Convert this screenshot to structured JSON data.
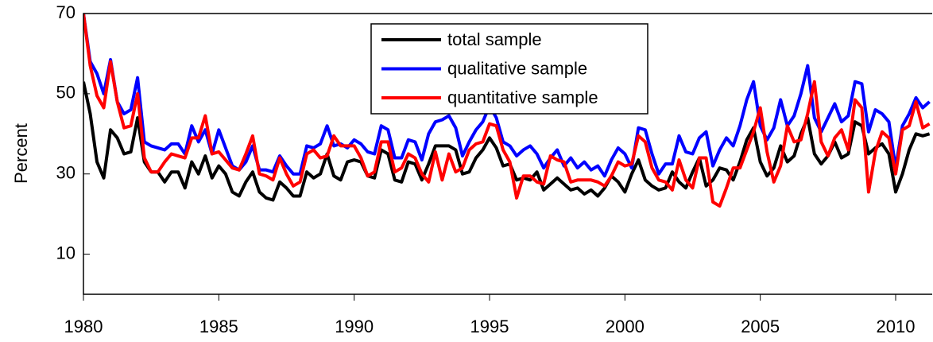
{
  "chart_data": {
    "type": "line",
    "ylabel": "Percent",
    "x": [
      1980,
      1980.25,
      1980.5,
      1980.75,
      1981,
      1981.25,
      1981.5,
      1981.75,
      1982,
      1982.25,
      1982.5,
      1982.75,
      1983,
      1983.25,
      1983.5,
      1983.75,
      1984,
      1984.25,
      1984.5,
      1984.75,
      1985,
      1985.25,
      1985.5,
      1985.75,
      1986,
      1986.25,
      1986.5,
      1986.75,
      1987,
      1987.25,
      1987.5,
      1987.75,
      1988,
      1988.25,
      1988.5,
      1988.75,
      1989,
      1989.25,
      1989.5,
      1989.75,
      1990,
      1990.25,
      1990.5,
      1990.75,
      1991,
      1991.25,
      1991.5,
      1991.75,
      1992,
      1992.25,
      1992.5,
      1992.75,
      1993,
      1993.25,
      1993.5,
      1993.75,
      1994,
      1994.25,
      1994.5,
      1994.75,
      1995,
      1995.25,
      1995.5,
      1995.75,
      1996,
      1996.25,
      1996.5,
      1996.75,
      1997,
      1997.25,
      1997.5,
      1997.75,
      1998,
      1998.25,
      1998.5,
      1998.75,
      1999,
      1999.25,
      1999.5,
      1999.75,
      2000,
      2000.25,
      2000.5,
      2000.75,
      2001,
      2001.25,
      2001.5,
      2001.75,
      2002,
      2002.25,
      2002.5,
      2002.75,
      2003,
      2003.25,
      2003.5,
      2003.75,
      2004,
      2004.25,
      2004.5,
      2004.75,
      2005,
      2005.25,
      2005.5,
      2005.75,
      2006,
      2006.25,
      2006.5,
      2006.75,
      2007,
      2007.25,
      2007.5,
      2007.75,
      2008,
      2008.25,
      2008.5,
      2008.75,
      2009,
      2009.25,
      2009.5,
      2009.75,
      2010,
      2010.25,
      2010.5,
      2010.75,
      2011,
      2011.25
    ],
    "series": [
      {
        "name": "total sample",
        "color": "#000000",
        "values": [
          53,
          45,
          33,
          29,
          41,
          39,
          35,
          35.5,
          44,
          33,
          30.5,
          30.5,
          28,
          30.5,
          30.5,
          26.5,
          33,
          30,
          34.5,
          29,
          32,
          30,
          25.5,
          24.5,
          28,
          30.5,
          25.5,
          24,
          23.5,
          28,
          26.5,
          24.5,
          24.5,
          30.5,
          29,
          30,
          35,
          29.5,
          28.5,
          33,
          33.5,
          33,
          29.5,
          29,
          36,
          35,
          28.5,
          28,
          33,
          32.5,
          28.5,
          32.5,
          37,
          37,
          37,
          36,
          30,
          30.5,
          34,
          36,
          39,
          36.5,
          32,
          32.5,
          28.5,
          29,
          28.5,
          30.5,
          26,
          27.5,
          29,
          27.5,
          26,
          26.5,
          25,
          26,
          24.5,
          26.5,
          29.5,
          28,
          25.5,
          30,
          33.5,
          28.5,
          27,
          26,
          26.5,
          30.5,
          28,
          26.5,
          30.5,
          34,
          27,
          28.5,
          31.5,
          31,
          28.5,
          33,
          38.5,
          41.5,
          33,
          29.5,
          31.5,
          37,
          33,
          34.5,
          40,
          44,
          35,
          32.5,
          34.5,
          38,
          34,
          35,
          43,
          42,
          35,
          36.5,
          37.5,
          35,
          25.5,
          30,
          36,
          40,
          39.5,
          40
        ]
      },
      {
        "name": "qualitative sample",
        "color": "#0000ff",
        "values": [
          70,
          58,
          55,
          50,
          58.5,
          48,
          45,
          46,
          54,
          38,
          37,
          36.5,
          36,
          37.5,
          37.5,
          35,
          42,
          38,
          41,
          35,
          41,
          36.5,
          32,
          31,
          33,
          37,
          31,
          31,
          30.5,
          34.5,
          32,
          30,
          30,
          37,
          36.5,
          37.5,
          42,
          37,
          37.5,
          36.5,
          38.5,
          37.5,
          35.5,
          35,
          42,
          41,
          34,
          34,
          38.5,
          38,
          33.5,
          40,
          43,
          43.5,
          44.5,
          41.5,
          34.5,
          38,
          41,
          43,
          47,
          44,
          38,
          37,
          34.5,
          36,
          37,
          35,
          31.5,
          34,
          36,
          32,
          34,
          31.5,
          33,
          31,
          32,
          29.5,
          33.5,
          36.5,
          35,
          31.5,
          41.5,
          41,
          35,
          30,
          32.5,
          32.5,
          39.5,
          35.5,
          35,
          39,
          40.5,
          32,
          36,
          39,
          37,
          42,
          48.5,
          53,
          42,
          38.5,
          41.5,
          48.5,
          42,
          44.5,
          50,
          57,
          44,
          40.5,
          44,
          47.5,
          43,
          44.5,
          53,
          52.5,
          40.5,
          46,
          45,
          43,
          31.5,
          42,
          45,
          49,
          46.5,
          48
        ]
      },
      {
        "name": "quantitative sample",
        "color": "#ff0000",
        "values": [
          70,
          57,
          49.5,
          46.5,
          58,
          48,
          41.5,
          42,
          50,
          34,
          30.5,
          30.5,
          33,
          35,
          34.5,
          34,
          39,
          39,
          44.5,
          35,
          35.5,
          33.5,
          31.5,
          31,
          35,
          39.5,
          30,
          29.5,
          28.5,
          34,
          30,
          27,
          28,
          35,
          36,
          34,
          34.5,
          39.5,
          37,
          37,
          37,
          34,
          29.5,
          30.5,
          38,
          38,
          30.5,
          31.5,
          35,
          34,
          30,
          28,
          35.5,
          28.5,
          35,
          30.5,
          31.5,
          36,
          37.5,
          38,
          42.5,
          42,
          36,
          33,
          24,
          29.5,
          29.5,
          28,
          27.5,
          34.5,
          33.5,
          33,
          28,
          28.5,
          28.5,
          28.5,
          28,
          27,
          29.5,
          33,
          32,
          32.5,
          39.5,
          38,
          31.5,
          28.5,
          28,
          26,
          33.5,
          28.5,
          26.5,
          34,
          34,
          23,
          22,
          26.5,
          31.5,
          31.5,
          36,
          40.5,
          46.5,
          35.5,
          28,
          32,
          42,
          38,
          38.5,
          45,
          53,
          38,
          34.5,
          39,
          41,
          36,
          48.5,
          46.5,
          25.5,
          35.5,
          40.5,
          39,
          30,
          41,
          42,
          48,
          41.5,
          42.5
        ]
      }
    ],
    "xlim": [
      1980,
      2011.35
    ],
    "ylim": [
      0,
      70
    ],
    "xticks": [
      1980,
      1985,
      1990,
      1995,
      2000,
      2005,
      2010
    ],
    "yticks": [
      10,
      30,
      50,
      70
    ]
  }
}
